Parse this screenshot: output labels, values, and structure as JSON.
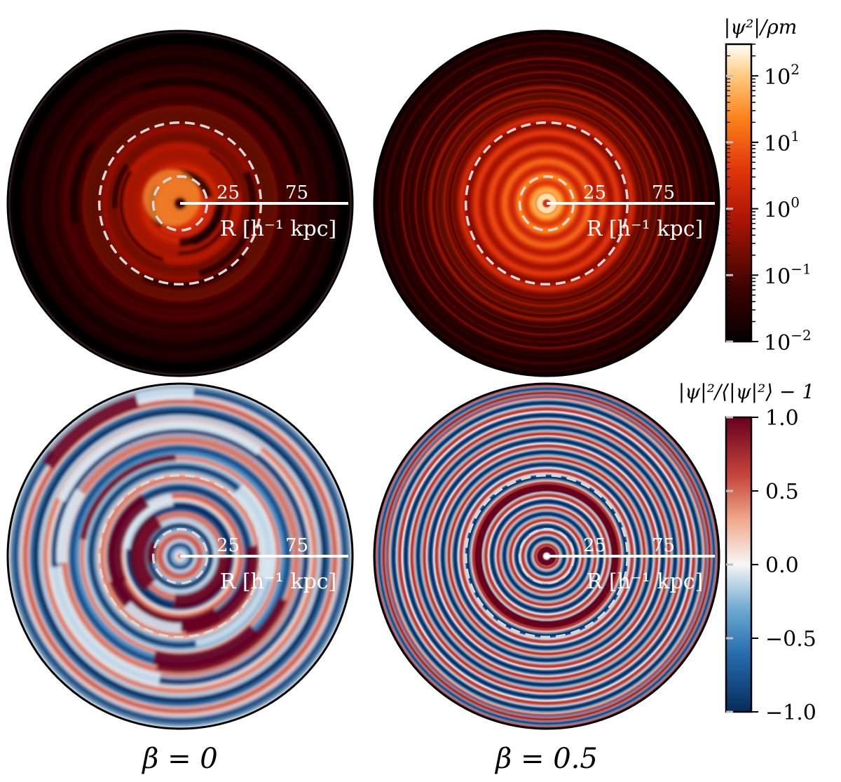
{
  "chart_data": [
    {
      "type": "heatmap",
      "panel": "top-left",
      "field": "density",
      "colormap": "gist_heat",
      "radial_label": "R [h⁻¹ kpc]",
      "radial_ticks": [
        "25",
        "75"
      ],
      "dashed_circle_radii_kpc": [
        25,
        75
      ],
      "core_level_log10": 1.2,
      "ring_amplitude": 0.25,
      "ring_count": 9,
      "irregular": true
    },
    {
      "type": "heatmap",
      "panel": "top-right",
      "field": "density",
      "colormap": "gist_heat",
      "radial_label": "R [h⁻¹ kpc]",
      "radial_ticks": [
        "25",
        "75"
      ],
      "dashed_circle_radii_kpc": [
        25,
        75
      ],
      "core_level_log10": 1.8,
      "ring_amplitude": 0.35,
      "ring_count": 12,
      "irregular": false
    },
    {
      "type": "heatmap",
      "panel": "bottom-left",
      "field": "contrast",
      "colormap": "RdBu_r",
      "radial_label": "R [h⁻¹ kpc]",
      "radial_ticks": [
        "25",
        "75"
      ],
      "dashed_circle_radii_kpc": [
        25,
        75
      ],
      "ring_count": 9,
      "irregular": true
    },
    {
      "type": "heatmap",
      "panel": "bottom-right",
      "field": "contrast",
      "colormap": "RdBu_r",
      "radial_label": "R [h⁻¹ kpc]",
      "radial_ticks": [
        "25",
        "75"
      ],
      "dashed_circle_radii_kpc": [
        25,
        75
      ],
      "ring_count": 14,
      "irregular": false
    }
  ],
  "colorbars": {
    "top": {
      "title": "|ψ²|/ρm",
      "scale": "log",
      "range": [
        0.01,
        300
      ],
      "ticks": [
        {
          "value": 100,
          "base": "10",
          "exp": "2"
        },
        {
          "value": 10,
          "base": "10",
          "exp": "1"
        },
        {
          "value": 1,
          "base": "10",
          "exp": "0"
        },
        {
          "value": 0.1,
          "base": "10",
          "exp": "−1"
        },
        {
          "value": 0.01,
          "base": "10",
          "exp": "−2"
        }
      ]
    },
    "bottom": {
      "title": "|ψ|²/⟨|ψ|²⟩ − 1",
      "scale": "linear",
      "range": [
        -1.0,
        1.0
      ],
      "ticks": [
        "1.0",
        "0.5",
        "0.0",
        "−0.5",
        "−1.0"
      ],
      "tick_values": [
        1.0,
        0.5,
        0.0,
        -0.5,
        -1.0
      ]
    }
  },
  "columns": [
    {
      "label": "β = 0"
    },
    {
      "label": "β = 0.5"
    }
  ],
  "colors": {
    "dashed_circle": "#d8d8d8",
    "axis_line": "#ffffff"
  }
}
